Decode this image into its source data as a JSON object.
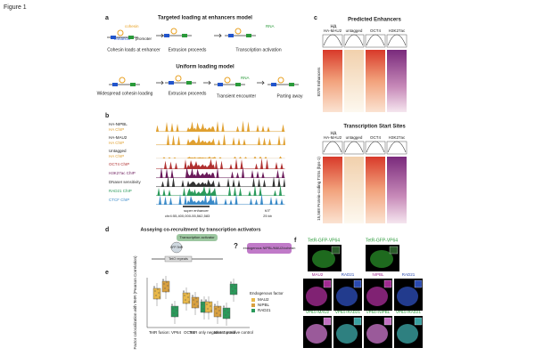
{
  "figure": "Figure 1",
  "a": {
    "label": "a",
    "model1": {
      "title": "Targeted loading at enhancers model",
      "cohesin": "cohesin",
      "enhancer": "enhancer",
      "promoter": "promoter",
      "steps": [
        "Cohesin loads at enhancer",
        "Extrusion proceeds",
        "Transcription activation"
      ],
      "rna": "RNA"
    },
    "model2": {
      "title": "Uniform loading model",
      "steps": [
        "Widespread cohesin loading",
        "Extrusion proceeds",
        "Transient encounter",
        "Parting away"
      ],
      "rna": "RNA"
    }
  },
  "b": {
    "label": "b",
    "tracks": [
      {
        "name": "HA-NIPBL",
        "sub": "HA ChIP"
      },
      {
        "name": "HA-MAU2",
        "sub": "HA ChIP"
      },
      {
        "name": "Untagged",
        "sub": "HA ChIP"
      },
      {
        "name": "OCT4 ChIP"
      },
      {
        "name": "H3K27ac ChIP"
      },
      {
        "name": "DNaseI sensitivity"
      },
      {
        "name": "RAD21 ChIP"
      },
      {
        "name": "CTCF ChIP"
      }
    ],
    "region": "super enhancer",
    "gene": "KIT",
    "coords": "chr4:55,400,000-55,562,583",
    "scale": "25 kb"
  },
  "c": {
    "label": "c",
    "enh": {
      "title": "Predicted Enhancers",
      "ha": "HA",
      "cols": [
        "HA-MAU2",
        "untagged",
        "OCT4",
        "H3K27ac"
      ],
      "rows": "8378 Enhancers"
    },
    "tss": {
      "title": "Transcription Start Sites",
      "ha": "HA",
      "cols": [
        "HA-MAU2",
        "untagged",
        "OCT4",
        "H3K27ac"
      ],
      "rows": "15,568 Protein-coding TSSs (bps-1)"
    }
  },
  "d": {
    "label": "d",
    "title": "Assaying co-recruitment by transcription activators",
    "activator": "Transcription activator",
    "endogenous": "endogenous NIPBL/MAU2/cohesin",
    "tetr": "GFP-TetR",
    "teto": "TetO repeats",
    "q": "?"
  },
  "e": {
    "label": "e",
    "ylabel": "Factor colocalization with TetR (Pearson Correlation)",
    "groups": [
      "TetR fusion: VP64",
      "OCT4",
      "TetR only negative control",
      "MAU2 positive control"
    ],
    "legend_title": "Endogenous factor",
    "legend": [
      "MAU2",
      "NIPBL",
      "RAD21"
    ]
  },
  "f": {
    "label": "f",
    "titles": [
      "TetR-GFP-VP64",
      "TetR-GFP-VP64"
    ],
    "row2": [
      "MAU2",
      "RAD21",
      "NIPBL",
      "RAD21"
    ],
    "row3": [
      "VP64+MAU2",
      "VP64+RAD21",
      "VP64+NIPBL",
      "VP64+RAD21"
    ]
  }
}
